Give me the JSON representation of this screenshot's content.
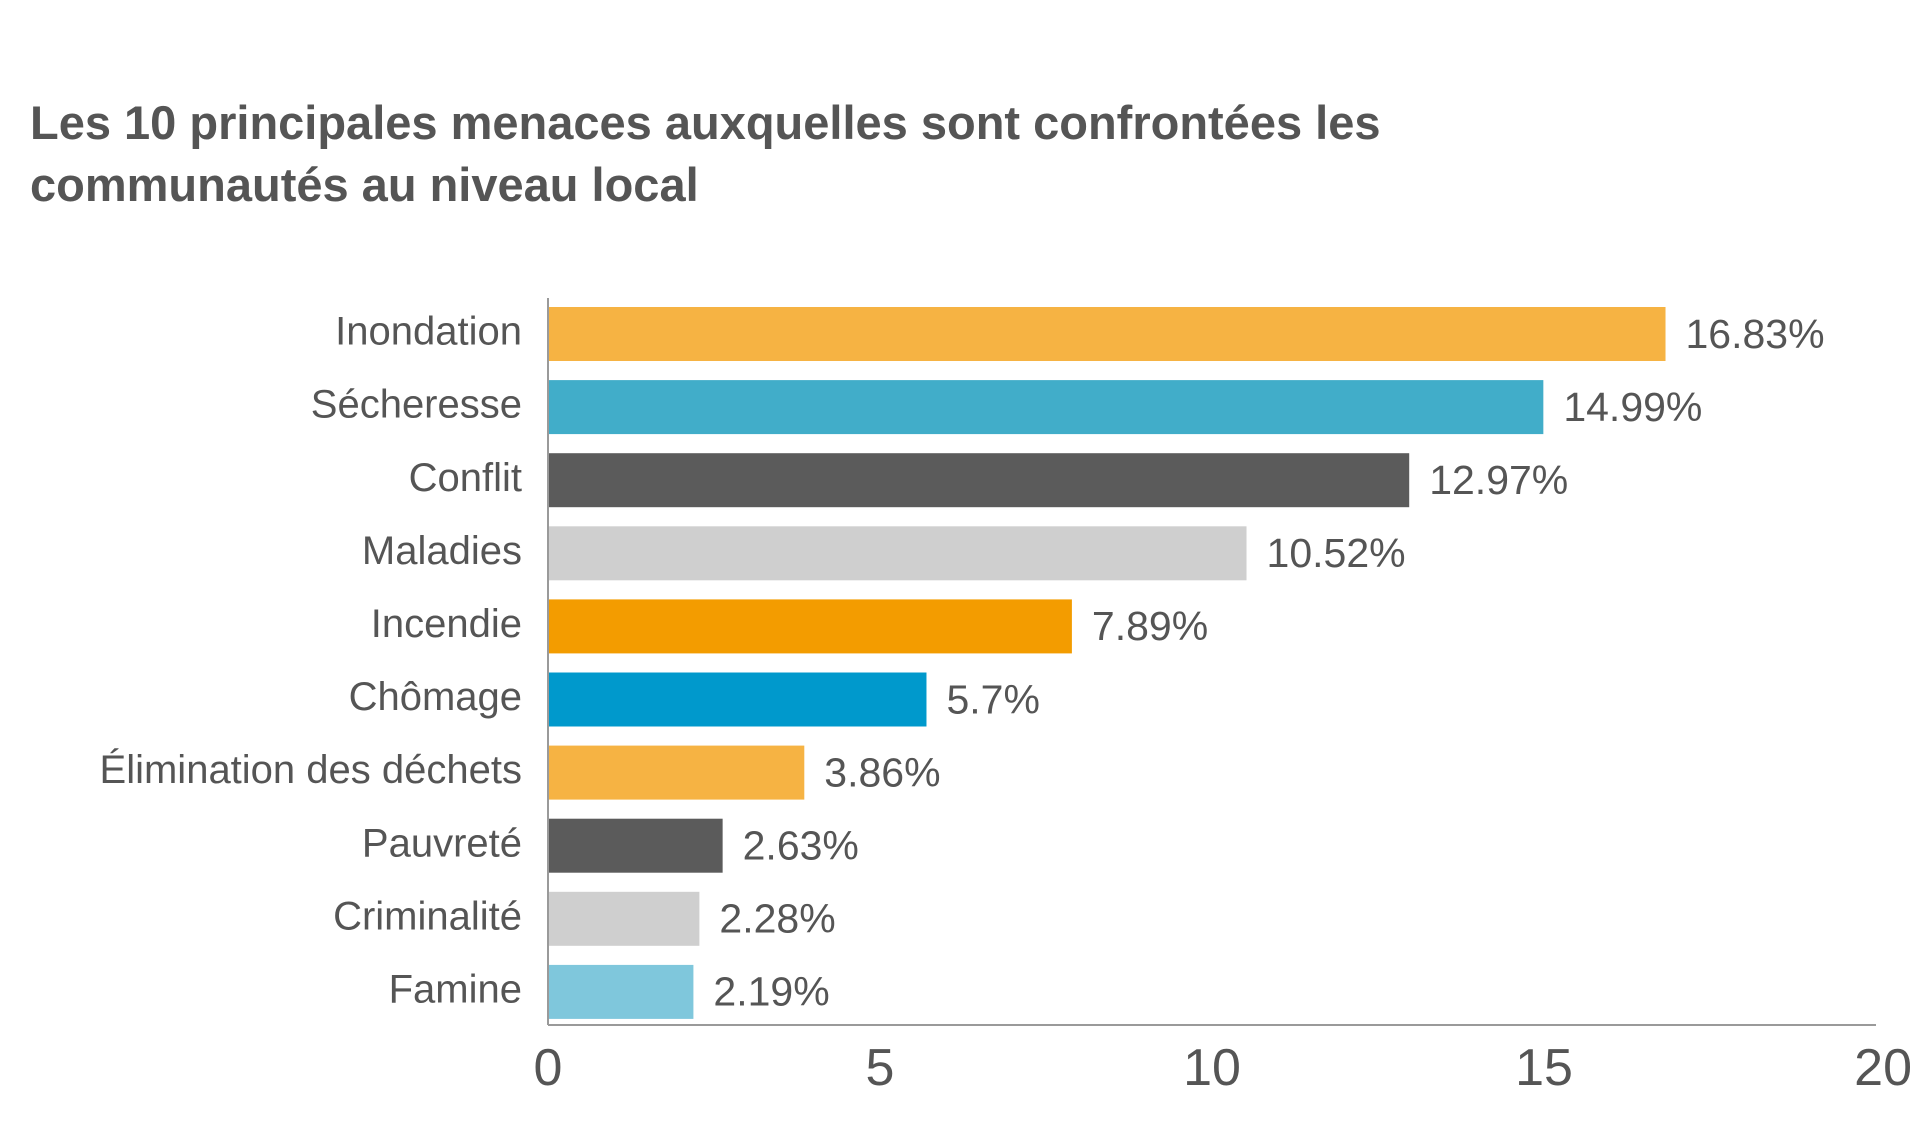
{
  "chart_data": {
    "type": "bar",
    "orientation": "horizontal",
    "title": "Les 10 principales menaces auxquelles sont confrontées les communautés au niveau local",
    "categories": [
      "Inondation",
      "Sécheresse",
      "Conflit",
      "Maladies",
      "Incendie",
      "Chômage",
      "Élimination des déchets",
      "Pauvreté",
      "Criminalité",
      "Famine"
    ],
    "values": [
      16.83,
      14.99,
      12.97,
      10.52,
      7.89,
      5.7,
      3.86,
      2.63,
      2.28,
      2.19
    ],
    "value_labels": [
      "16.83%",
      "14.99%",
      "12.97%",
      "10.52%",
      "7.89%",
      "5.7%",
      "3.86%",
      "2.63%",
      "2.28%",
      "2.19%"
    ],
    "colors": [
      "#F6B343",
      "#41ADC9",
      "#5B5B5B",
      "#CFCFCF",
      "#F39C00",
      "#0099CC",
      "#F6B343",
      "#5B5B5B",
      "#CFCFCF",
      "#7FC7DC"
    ],
    "xlim": [
      0,
      20
    ],
    "xticks": [
      0,
      5,
      10,
      15,
      20
    ],
    "xlabel": "",
    "ylabel": "",
    "grid": false,
    "legend": "none"
  }
}
